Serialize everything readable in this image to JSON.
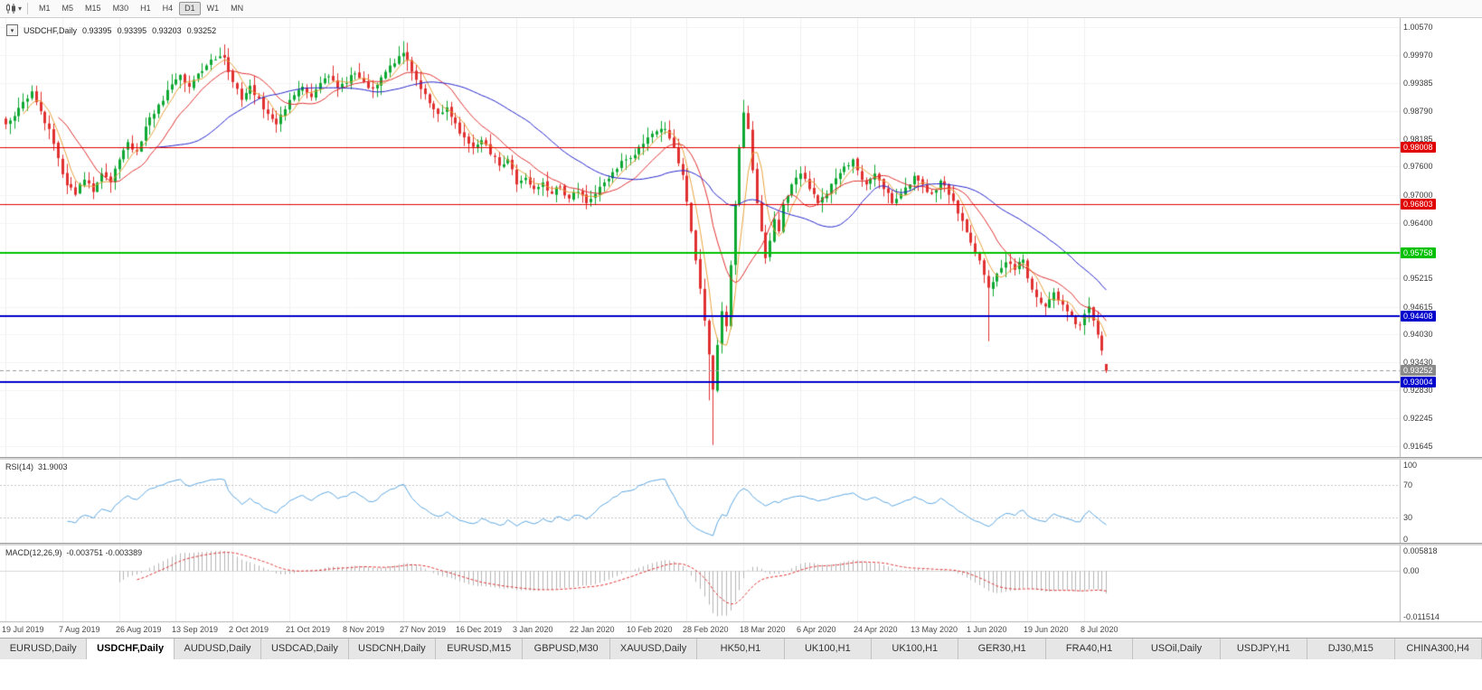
{
  "toolbar": {
    "timeframes": [
      "M1",
      "M5",
      "M15",
      "M30",
      "H1",
      "H4",
      "D1",
      "W1",
      "MN"
    ],
    "active": "D1"
  },
  "chart_data": {
    "type": "candlestick",
    "symbol": "USDCHF,Daily",
    "ohlc_display": {
      "open": "0.93395",
      "high": "0.93395",
      "low": "0.93203",
      "close": "0.93252"
    },
    "price_axis": {
      "max": 1.0057,
      "min": 0.91645,
      "ticks": [
        "1.00570",
        "0.99970",
        "0.99385",
        "0.98790",
        "0.98185",
        "0.97600",
        "0.97000",
        "0.96400",
        "0.95215",
        "0.94615",
        "0.94030",
        "0.93430",
        "0.92830",
        "0.92245",
        "0.91645"
      ]
    },
    "horizontal_lines": [
      {
        "price": 0.98008,
        "label": "0.98008",
        "color": "#e00000",
        "width": 1
      },
      {
        "price": 0.96803,
        "label": "0.96803",
        "color": "#e00000",
        "width": 1
      },
      {
        "price": 0.95758,
        "label": "0.95758",
        "color": "#00c000",
        "width": 2
      },
      {
        "price": 0.94408,
        "label": "0.94408",
        "color": "#0000cc",
        "width": 2
      },
      {
        "price": 0.93004,
        "label": "0.93004",
        "color": "#0000cc",
        "width": 2
      }
    ],
    "current_price": {
      "value": 0.93252,
      "label": "0.93252",
      "tag_color": "#8a8a8a"
    },
    "dates": [
      "19 Jul 2019",
      "7 Aug 2019",
      "26 Aug 2019",
      "13 Sep 2019",
      "2 Oct 2019",
      "21 Oct 2019",
      "8 Nov 2019",
      "27 Nov 2019",
      "16 Dec 2019",
      "3 Jan 2020",
      "22 Jan 2020",
      "10 Feb 2020",
      "28 Feb 2020",
      "18 Mar 2020",
      "6 Apr 2020",
      "24 Apr 2020",
      "13 May 2020",
      "1 Jun 2020",
      "19 Jun 2020",
      "8 Jul 2020"
    ],
    "bars_per_date": 13,
    "candles": {
      "count": 253,
      "waypoints": [
        [
          0,
          0.985
        ],
        [
          3,
          0.9885
        ],
        [
          6,
          0.992
        ],
        [
          8,
          0.9878
        ],
        [
          10,
          0.984
        ],
        [
          12,
          0.9778
        ],
        [
          14,
          0.972
        ],
        [
          16,
          0.97
        ],
        [
          18,
          0.9732
        ],
        [
          20,
          0.9706
        ],
        [
          22,
          0.9745
        ],
        [
          24,
          0.9726
        ],
        [
          26,
          0.9775
        ],
        [
          28,
          0.9812
        ],
        [
          30,
          0.9792
        ],
        [
          32,
          0.9845
        ],
        [
          34,
          0.9872
        ],
        [
          36,
          0.99
        ],
        [
          38,
          0.9935
        ],
        [
          40,
          0.9955
        ],
        [
          42,
          0.993
        ],
        [
          44,
          0.9958
        ],
        [
          46,
          0.9975
        ],
        [
          48,
          0.9988
        ],
        [
          50,
          0.9992
        ],
        [
          52,
          0.994
        ],
        [
          54,
          0.9902
        ],
        [
          56,
          0.9932
        ],
        [
          58,
          0.9905
        ],
        [
          60,
          0.9872
        ],
        [
          62,
          0.985
        ],
        [
          64,
          0.9882
        ],
        [
          66,
          0.9912
        ],
        [
          68,
          0.993
        ],
        [
          70,
          0.9908
        ],
        [
          72,
          0.9938
        ],
        [
          74,
          0.9952
        ],
        [
          76,
          0.9928
        ],
        [
          78,
          0.9938
        ],
        [
          80,
          0.9958
        ],
        [
          82,
          0.994
        ],
        [
          84,
          0.9926
        ],
        [
          86,
          0.995
        ],
        [
          88,
          0.9975
        ],
        [
          90,
          0.9995
        ],
        [
          91,
          1.0002
        ],
        [
          93,
          0.9962
        ],
        [
          95,
          0.9925
        ],
        [
          97,
          0.9895
        ],
        [
          99,
          0.9872
        ],
        [
          101,
          0.9886
        ],
        [
          103,
          0.9852
        ],
        [
          105,
          0.9822
        ],
        [
          107,
          0.9802
        ],
        [
          109,
          0.9816
        ],
        [
          111,
          0.9786
        ],
        [
          113,
          0.9762
        ],
        [
          115,
          0.9776
        ],
        [
          117,
          0.9722
        ],
        [
          119,
          0.9736
        ],
        [
          121,
          0.9712
        ],
        [
          123,
          0.9726
        ],
        [
          125,
          0.9702
        ],
        [
          127,
          0.9716
        ],
        [
          129,
          0.9692
        ],
        [
          131,
          0.9706
        ],
        [
          133,
          0.9682
        ],
        [
          135,
          0.9702
        ],
        [
          137,
          0.9726
        ],
        [
          139,
          0.9748
        ],
        [
          141,
          0.9772
        ],
        [
          143,
          0.9778
        ],
        [
          145,
          0.9802
        ],
        [
          147,
          0.9822
        ],
        [
          149,
          0.9835
        ],
        [
          151,
          0.984
        ],
        [
          153,
          0.98
        ],
        [
          155,
          0.9742
        ],
        [
          156,
          0.9685
        ],
        [
          157,
          0.9622
        ],
        [
          158,
          0.956
        ],
        [
          159,
          0.95
        ],
        [
          160,
          0.9432
        ],
        [
          161,
          0.936
        ],
        [
          162,
          0.9285
        ],
        [
          163,
          0.938
        ],
        [
          164,
          0.9452
        ],
        [
          165,
          0.942
        ],
        [
          166,
          0.955
        ],
        [
          167,
          0.968
        ],
        [
          168,
          0.98
        ],
        [
          169,
          0.9875
        ],
        [
          170,
          0.984
        ],
        [
          171,
          0.9752
        ],
        [
          172,
          0.9682
        ],
        [
          173,
          0.9622
        ],
        [
          174,
          0.9565
        ],
        [
          175,
          0.9602
        ],
        [
          176,
          0.9648
        ],
        [
          177,
          0.9622
        ],
        [
          178,
          0.968
        ],
        [
          180,
          0.9722
        ],
        [
          182,
          0.9745
        ],
        [
          184,
          0.9712
        ],
        [
          186,
          0.9682
        ],
        [
          188,
          0.9702
        ],
        [
          190,
          0.9735
        ],
        [
          192,
          0.976
        ],
        [
          194,
          0.9775
        ],
        [
          195,
          0.9752
        ],
        [
          197,
          0.9722
        ],
        [
          199,
          0.9745
        ],
        [
          201,
          0.9712
        ],
        [
          203,
          0.9682
        ],
        [
          205,
          0.9702
        ],
        [
          207,
          0.9722
        ],
        [
          208,
          0.974
        ],
        [
          210,
          0.9722
        ],
        [
          212,
          0.9702
        ],
        [
          214,
          0.973
        ],
        [
          216,
          0.97
        ],
        [
          218,
          0.966
        ],
        [
          220,
          0.962
        ],
        [
          221,
          0.9598
        ],
        [
          223,
          0.956
        ],
        [
          225,
          0.9502
        ],
        [
          227,
          0.9532
        ],
        [
          229,
          0.9556
        ],
        [
          231,
          0.954
        ],
        [
          233,
          0.9562
        ],
        [
          234,
          0.9522
        ],
        [
          236,
          0.9482
        ],
        [
          238,
          0.9462
        ],
        [
          240,
          0.9492
        ],
        [
          242,
          0.9466
        ],
        [
          244,
          0.944
        ],
        [
          246,
          0.9422
        ],
        [
          247,
          0.9446
        ],
        [
          248,
          0.9462
        ],
        [
          249,
          0.9432
        ],
        [
          250,
          0.9402
        ],
        [
          251,
          0.9368
        ],
        [
          252,
          0.93252
        ]
      ],
      "overrides": {
        "50": {
          "h": 1.002
        },
        "91": {
          "h": 1.0027
        },
        "161": {
          "l": 0.9262
        },
        "162": {
          "l": 0.9167
        },
        "169": {
          "h": 0.9902
        },
        "225": {
          "l": 0.9388
        },
        "252": {
          "o": 0.93395,
          "h": 0.93395,
          "l": 0.93203,
          "c": 0.93252
        }
      },
      "noise": {
        "seed": 42,
        "close_amp": 0.0014,
        "gap_amp": 0.0006,
        "wick_amp": 0.0022
      }
    },
    "moving_averages": [
      {
        "period": 5,
        "color": "#e8a33d"
      },
      {
        "period": 13,
        "color": "#e03030"
      },
      {
        "period": 34,
        "color": "#2424cc"
      }
    ],
    "colors": {
      "bull": "#0fa832",
      "bear": "#e03030",
      "grid": "#efefef",
      "hgrid": "#f3f3f3",
      "axis_line": "#b0b0b0",
      "bid_line": "#9a9a9a"
    }
  },
  "rsi": {
    "name": "RSI(14)",
    "value": "31.9003",
    "period": 14,
    "axis": [
      "100",
      "70",
      "30",
      "0"
    ],
    "levels": [
      70,
      30
    ],
    "color": "#5ba6e0"
  },
  "macd": {
    "name": "MACD(12,26,9)",
    "values": "-0.003751 -0.003389",
    "fast": 12,
    "slow": 26,
    "signal": 9,
    "axis": [
      {
        "label": "0.005818",
        "value": 0.005818
      },
      {
        "label": "0.00",
        "value": 0
      },
      {
        "label": "-0.011514",
        "value": -0.011514
      }
    ],
    "hist_color": "#b4b4b4",
    "signal_color": "#e03030"
  },
  "tabs": {
    "active_index": 1,
    "items": [
      "EURUSD,Daily",
      "USDCHF,Daily",
      "AUDUSD,Daily",
      "USDCAD,Daily",
      "USDCNH,Daily",
      "EURUSD,M15",
      "GBPUSD,M30",
      "XAUUSD,Daily",
      "HK50,H1",
      "UK100,H1",
      "UK100,H1",
      "GER30,H1",
      "FRA40,H1",
      "USOil,Daily",
      "USDJPY,H1",
      "DJ30,M15",
      "CHINA300,H4"
    ]
  }
}
